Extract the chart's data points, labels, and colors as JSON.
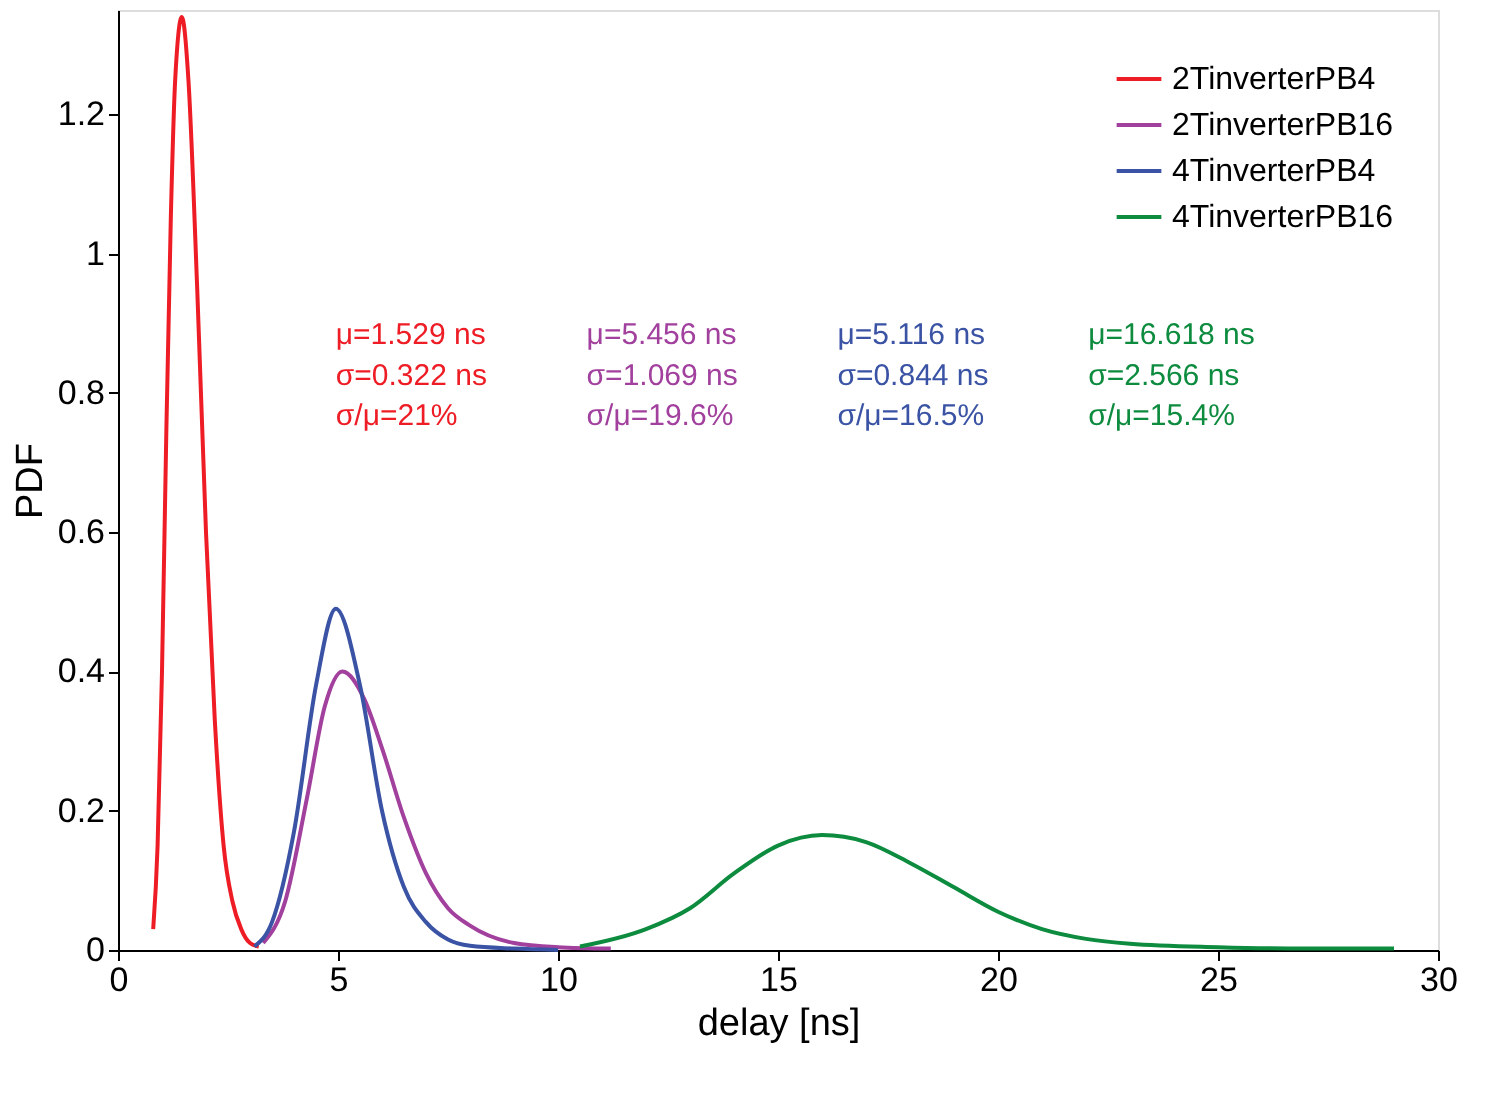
{
  "chart_data": {
    "type": "line",
    "xlabel": "delay [ns]",
    "ylabel": "PDF",
    "xlim": [
      0,
      30
    ],
    "ylim": [
      0,
      1.35
    ],
    "xticks": [
      0,
      5,
      10,
      15,
      20,
      25,
      30
    ],
    "yticks": [
      0,
      0.2,
      0.4,
      0.6,
      0.8,
      1,
      1.2
    ],
    "grid": false,
    "legend": "top right",
    "line_style": "solid",
    "marker": "none",
    "series": [
      {
        "name": "2TinverterPB4",
        "color": "#ee1c25",
        "x": [
          0.8,
          0.9,
          1.0,
          1.1,
          1.2,
          1.3,
          1.45,
          1.6,
          1.8,
          2.0,
          2.2,
          2.4,
          2.6,
          2.8,
          3.0,
          3.2
        ],
        "values": [
          0.03,
          0.15,
          0.4,
          0.75,
          1.05,
          1.25,
          1.34,
          1.25,
          0.95,
          0.6,
          0.33,
          0.15,
          0.07,
          0.03,
          0.01,
          0.005
        ]
      },
      {
        "name": "2TinverterPB16",
        "color": "#a2409e",
        "x": [
          3.3,
          3.8,
          4.3,
          4.7,
          5.1,
          5.6,
          6.0,
          6.5,
          7.0,
          7.5,
          8.0,
          9.0,
          10.0,
          11.2
        ],
        "values": [
          0.01,
          0.07,
          0.22,
          0.35,
          0.4,
          0.36,
          0.29,
          0.19,
          0.11,
          0.06,
          0.035,
          0.01,
          0.004,
          0.002
        ]
      },
      {
        "name": "4TinverterPB4",
        "color": "#3a53a4",
        "x": [
          3.1,
          3.5,
          4.0,
          4.5,
          4.95,
          5.5,
          6.0,
          6.5,
          7.0,
          7.5,
          8.0,
          9.0,
          10.0
        ],
        "values": [
          0.005,
          0.04,
          0.17,
          0.38,
          0.49,
          0.38,
          0.2,
          0.09,
          0.04,
          0.015,
          0.006,
          0.002,
          0.0
        ]
      },
      {
        "name": "4TinverterPB16",
        "color": "#0d8b3e",
        "x": [
          10.5,
          12,
          13,
          14,
          15,
          16,
          17,
          18,
          19,
          20,
          21,
          22,
          23,
          25,
          27,
          29
        ],
        "values": [
          0.005,
          0.03,
          0.06,
          0.11,
          0.15,
          0.165,
          0.155,
          0.125,
          0.09,
          0.055,
          0.03,
          0.016,
          0.009,
          0.004,
          0.002,
          0.002
        ]
      }
    ],
    "annotations": [
      "μ=1.529 ns",
      "σ=0.322 ns",
      "σ/μ=21%",
      "μ=5.456 ns",
      "σ=1.069 ns",
      "σ/μ=19.6%",
      "μ=5.116 ns",
      "σ=0.844 ns",
      "σ/μ=16.5%",
      "μ=16.618 ns",
      "σ=2.566 ns",
      "σ/μ=15.4%"
    ]
  }
}
